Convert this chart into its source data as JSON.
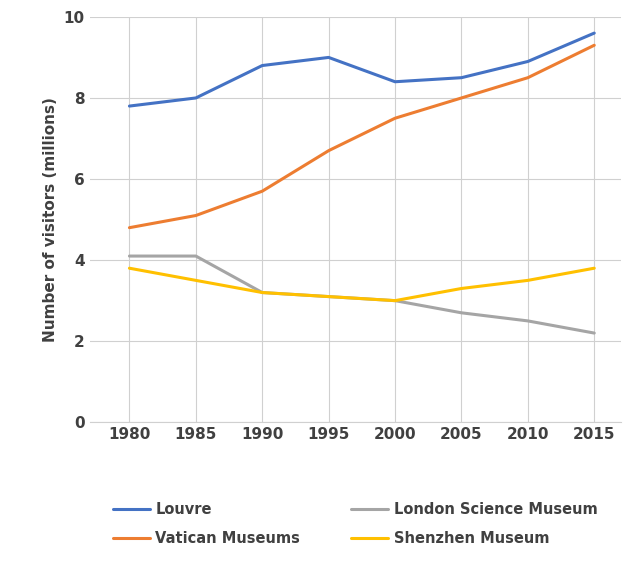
{
  "years": [
    1980,
    1985,
    1990,
    1995,
    2000,
    2005,
    2010,
    2015
  ],
  "louvre": [
    7.8,
    8.0,
    8.8,
    9.0,
    8.4,
    8.5,
    8.9,
    9.6
  ],
  "vatican": [
    4.8,
    5.1,
    5.7,
    6.7,
    7.5,
    8.0,
    8.5,
    9.3
  ],
  "london": [
    4.1,
    4.1,
    3.2,
    3.1,
    3.0,
    2.7,
    2.5,
    2.2
  ],
  "shenzhen": [
    3.8,
    3.5,
    3.2,
    3.1,
    3.0,
    3.3,
    3.5,
    3.8
  ],
  "series_labels": [
    "Louvre",
    "Vatican Museums",
    "London Science Museum",
    "Shenzhen Museum"
  ],
  "series_colors": [
    "#4472C4",
    "#ED7D31",
    "#A5A5A5",
    "#FFC000"
  ],
  "ylabel": "Number of visitors (millions)",
  "ylim": [
    0,
    10
  ],
  "yticks": [
    0,
    2,
    4,
    6,
    8,
    10
  ],
  "xticks": [
    1980,
    1985,
    1990,
    1995,
    2000,
    2005,
    2010,
    2015
  ],
  "xlim": [
    1977,
    2017
  ],
  "line_width": 2.2,
  "grid_color": "#D0D0D0",
  "bg_color": "#FFFFFF",
  "legend_fontsize": 10.5,
  "axis_label_fontsize": 11,
  "tick_fontsize": 11
}
